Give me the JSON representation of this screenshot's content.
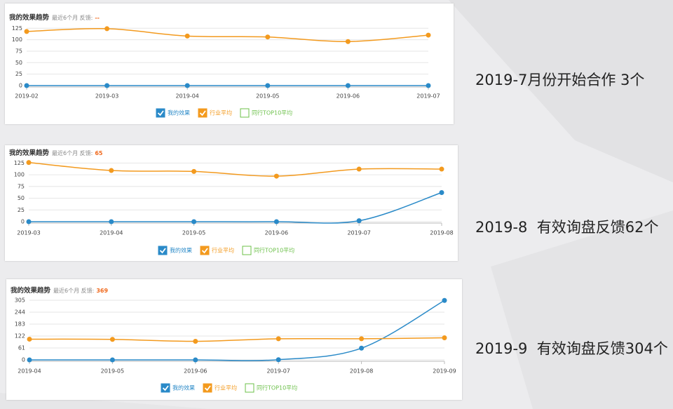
{
  "chart_data": [
    {
      "type": "line",
      "title": "我的效果趋势",
      "subtitle": "最近6个月 反馈:",
      "feedback": "--",
      "x": [
        "2019-02",
        "2019-03",
        "2019-04",
        "2019-05",
        "2019-06",
        "2019-07"
      ],
      "series": [
        {
          "name": "我的效果",
          "color": "#2a8ac8",
          "values": [
            0,
            0,
            0,
            0,
            0,
            0
          ]
        },
        {
          "name": "行业平均",
          "color": "#f39a1e",
          "values": [
            118,
            124,
            108,
            106,
            96,
            110
          ]
        },
        {
          "name": "同行TOP10平均",
          "color": "#6cc04a",
          "values": [
            null,
            null,
            null,
            null,
            null,
            null
          ]
        }
      ],
      "ylim": [
        0,
        130
      ],
      "yticks": [
        0,
        25,
        50,
        75,
        100,
        125
      ],
      "grid": true
    },
    {
      "type": "line",
      "title": "我的效果趋势",
      "subtitle": "最近6个月 反馈:",
      "feedback": "65",
      "x": [
        "2019-03",
        "2019-04",
        "2019-05",
        "2019-06",
        "2019-07",
        "2019-08"
      ],
      "series": [
        {
          "name": "我的效果",
          "color": "#2a8ac8",
          "values": [
            0,
            0,
            0,
            0,
            2,
            62
          ]
        },
        {
          "name": "行业平均",
          "color": "#f39a1e",
          "values": [
            126,
            109,
            107,
            97,
            112,
            112
          ]
        },
        {
          "name": "同行TOP10平均",
          "color": "#6cc04a",
          "values": [
            null,
            null,
            null,
            null,
            null,
            null
          ]
        }
      ],
      "ylim": [
        0,
        130
      ],
      "yticks": [
        0,
        25,
        50,
        75,
        100,
        125
      ],
      "grid": true
    },
    {
      "type": "line",
      "title": "我的效果趋势",
      "subtitle": "最近6个月 反馈:",
      "feedback": "369",
      "x": [
        "2019-04",
        "2019-05",
        "2019-06",
        "2019-07",
        "2019-08",
        "2019-09"
      ],
      "series": [
        {
          "name": "我的效果",
          "color": "#2a8ac8",
          "values": [
            0,
            0,
            0,
            1,
            60,
            304
          ]
        },
        {
          "name": "行业平均",
          "color": "#f39a1e",
          "values": [
            106,
            105,
            95,
            108,
            108,
            113
          ]
        },
        {
          "name": "同行TOP10平均",
          "color": "#6cc04a",
          "values": [
            null,
            null,
            null,
            null,
            null,
            null
          ]
        }
      ],
      "ylim": [
        0,
        305
      ],
      "yticks": [
        0,
        61,
        122,
        183,
        244,
        305
      ],
      "grid": true
    }
  ],
  "captions": [
    "2019-7月份开始合作 3个",
    "2019-8  有效询盘反馈62个",
    "2019-9  有效询盘反馈304个"
  ]
}
